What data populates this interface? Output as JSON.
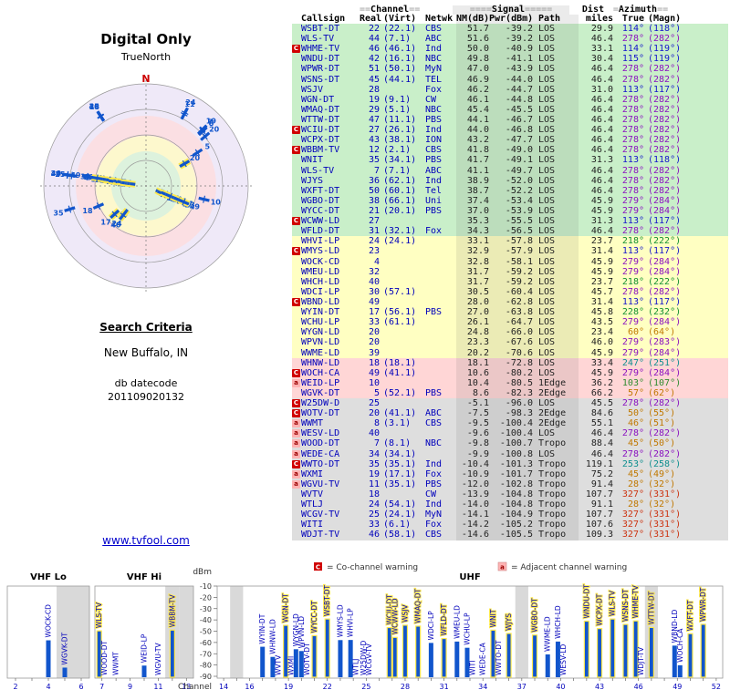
{
  "polar": {
    "title": "Digital Only",
    "subtitle": "TrueNorth",
    "north": "N"
  },
  "criteria": {
    "heading": "Search Criteria",
    "location": "New Buffalo, IN",
    "datecode_label": "db datecode",
    "datecode": "201109020132"
  },
  "site_link": "www.tvfool.com",
  "legend": {
    "c_symbol": "C",
    "c_text": "= Co-channel warning",
    "a_symbol": "a",
    "a_text": "= Adjacent channel warning"
  },
  "table": {
    "header": {
      "callsign": "Callsign",
      "real": "Real",
      "virt": "(Virt)",
      "netwk": "Netwk",
      "nm": "NM(dB)",
      "pwr": "Pwr(dBm)",
      "path": "Path",
      "dist": "Dist",
      "miles": "miles",
      "true": "True",
      "magn": "(Magn)",
      "ch_eq_l": "==",
      "ch": "Channel",
      "ch_eq_r": "==",
      "sig_eq_l": "====",
      "sig": "Signal",
      "sig_eq_r": "=====",
      "az_eq_l": "=",
      "az": "Azimuth",
      "az_eq_r": "=="
    },
    "rows": [
      [
        "",
        "WSBT-DT",
        "22",
        "(22.1)",
        "CBS",
        "51.7",
        "-39.2",
        "LOS",
        "29.9",
        "114°",
        "(118°)"
      ],
      [
        "",
        "WLS-TV",
        "44",
        "(7.1)",
        "ABC",
        "51.6",
        "-39.2",
        "LOS",
        "46.4",
        "278°",
        "(282°)"
      ],
      [
        "C",
        "WHME-TV",
        "46",
        "(46.1)",
        "Ind",
        "50.0",
        "-40.9",
        "LOS",
        "33.1",
        "114°",
        "(119°)"
      ],
      [
        "",
        "WNDU-DT",
        "42",
        "(16.1)",
        "NBC",
        "49.8",
        "-41.1",
        "LOS",
        "30.4",
        "115°",
        "(119°)"
      ],
      [
        "",
        "WPWR-DT",
        "51",
        "(50.1)",
        "MyN",
        "47.0",
        "-43.9",
        "LOS",
        "46.4",
        "278°",
        "(282°)"
      ],
      [
        "",
        "WSNS-DT",
        "45",
        "(44.1)",
        "TEL",
        "46.9",
        "-44.0",
        "LOS",
        "46.4",
        "278°",
        "(282°)"
      ],
      [
        "",
        "WSJV",
        "28",
        "",
        "Fox",
        "46.2",
        "-44.7",
        "LOS",
        "31.0",
        "113°",
        "(117°)"
      ],
      [
        "",
        "WGN-DT",
        "19",
        "(9.1)",
        "CW",
        "46.1",
        "-44.8",
        "LOS",
        "46.4",
        "278°",
        "(282°)"
      ],
      [
        "",
        "WMAQ-DT",
        "29",
        "(5.1)",
        "NBC",
        "45.4",
        "-45.5",
        "LOS",
        "46.4",
        "278°",
        "(282°)"
      ],
      [
        "",
        "WTTW-DT",
        "47",
        "(11.1)",
        "PBS",
        "44.1",
        "-46.7",
        "LOS",
        "46.4",
        "278°",
        "(282°)"
      ],
      [
        "C",
        "WCIU-DT",
        "27",
        "(26.1)",
        "Ind",
        "44.0",
        "-46.8",
        "LOS",
        "46.4",
        "278°",
        "(282°)"
      ],
      [
        "",
        "WCPX-DT",
        "43",
        "(38.1)",
        "ION",
        "43.2",
        "-47.7",
        "LOS",
        "46.4",
        "278°",
        "(282°)"
      ],
      [
        "C",
        "WBBM-TV",
        "12",
        "(2.1)",
        "CBS",
        "41.8",
        "-49.0",
        "LOS",
        "46.4",
        "278°",
        "(282°)"
      ],
      [
        "",
        "WNIT",
        "35",
        "(34.1)",
        "PBS",
        "41.7",
        "-49.1",
        "LOS",
        "31.3",
        "113°",
        "(118°)"
      ],
      [
        "",
        "WLS-TV",
        "7",
        "(7.1)",
        "ABC",
        "41.1",
        "-49.7",
        "LOS",
        "46.4",
        "278°",
        "(282°)"
      ],
      [
        "",
        "WJYS",
        "36",
        "(62.1)",
        "Ind",
        "38.9",
        "-52.0",
        "LOS",
        "46.4",
        "278°",
        "(282°)"
      ],
      [
        "",
        "WXFT-DT",
        "50",
        "(60.1)",
        "Tel",
        "38.7",
        "-52.2",
        "LOS",
        "46.4",
        "278°",
        "(282°)"
      ],
      [
        "",
        "WGBO-DT",
        "38",
        "(66.1)",
        "Uni",
        "37.4",
        "-53.4",
        "LOS",
        "45.9",
        "279°",
        "(284°)"
      ],
      [
        "",
        "WYCC-DT",
        "21",
        "(20.1)",
        "PBS",
        "37.0",
        "-53.9",
        "LOS",
        "45.9",
        "279°",
        "(284°)"
      ],
      [
        "C",
        "WCWW-LD",
        "27",
        "",
        "",
        "35.3",
        "-55.5",
        "LOS",
        "31.3",
        "113°",
        "(117°)"
      ],
      [
        "",
        "WFLD-DT",
        "31",
        "(32.1)",
        "Fox",
        "34.3",
        "-56.5",
        "LOS",
        "46.4",
        "278°",
        "(282°)"
      ],
      [
        "",
        "WHVI-LP",
        "24",
        "(24.1)",
        "",
        "33.1",
        "-57.8",
        "LOS",
        "23.7",
        "218°",
        "(222°)"
      ],
      [
        "C",
        "WMYS-LD",
        "23",
        "",
        "",
        "32.9",
        "-57.9",
        "LOS",
        "31.4",
        "113°",
        "(117°)"
      ],
      [
        "",
        "WOCK-CD",
        "4",
        "",
        "",
        "32.8",
        "-58.1",
        "LOS",
        "45.9",
        "279°",
        "(284°)"
      ],
      [
        "",
        "WMEU-LD",
        "32",
        "",
        "",
        "31.7",
        "-59.2",
        "LOS",
        "45.9",
        "279°",
        "(284°)"
      ],
      [
        "",
        "WHCH-LD",
        "40",
        "",
        "",
        "31.7",
        "-59.2",
        "LOS",
        "23.7",
        "218°",
        "(222°)"
      ],
      [
        "",
        "WDCI-LP",
        "30",
        "(57.1)",
        "",
        "30.5",
        "-60.4",
        "LOS",
        "45.7",
        "278°",
        "(282°)"
      ],
      [
        "C",
        "WBND-LD",
        "49",
        "",
        "",
        "28.0",
        "-62.8",
        "LOS",
        "31.4",
        "113°",
        "(117°)"
      ],
      [
        "",
        "WYIN-DT",
        "17",
        "(56.1)",
        "PBS",
        "27.0",
        "-63.8",
        "LOS",
        "45.8",
        "228°",
        "(232°)"
      ],
      [
        "",
        "WCHU-LP",
        "33",
        "(61.1)",
        "",
        "26.1",
        "-64.7",
        "LOS",
        "43.5",
        "279°",
        "(284°)"
      ],
      [
        "",
        "WYGN-LD",
        "20",
        "",
        "",
        "24.8",
        "-66.0",
        "LOS",
        "23.4",
        "60°",
        "(64°)"
      ],
      [
        "",
        "WPVN-LD",
        "20",
        "",
        "",
        "23.3",
        "-67.6",
        "LOS",
        "46.0",
        "279°",
        "(283°)"
      ],
      [
        "",
        "WWME-LD",
        "39",
        "",
        "",
        "20.2",
        "-70.6",
        "LOS",
        "45.9",
        "279°",
        "(284°)"
      ],
      [
        "",
        "WHNW-LD",
        "18",
        "(18.1)",
        "",
        "18.1",
        "-72.8",
        "LOS",
        "33.4",
        "247°",
        "(251°)"
      ],
      [
        "C",
        "WOCH-CA",
        "49",
        "(41.1)",
        "",
        "10.6",
        "-80.2",
        "LOS",
        "45.9",
        "279°",
        "(284°)"
      ],
      [
        "a",
        "WEID-LP",
        "10",
        "",
        "",
        "10.4",
        "-80.5",
        "1Edge",
        "36.2",
        "103°",
        "(107°)"
      ],
      [
        "",
        "WGVK-DT",
        "5",
        "(52.1)",
        "PBS",
        "8.6",
        "-82.3",
        "2Edge",
        "66.2",
        "57°",
        "(62°)"
      ],
      [
        "C",
        "W25DW-D",
        "25",
        "",
        "",
        "-5.1",
        "-96.0",
        "LOS",
        "45.5",
        "278°",
        "(282°)"
      ],
      [
        "C",
        "WOTV-DT",
        "20",
        "(41.1)",
        "ABC",
        "-7.5",
        "-98.3",
        "2Edge",
        "84.6",
        "50°",
        "(55°)"
      ],
      [
        "a",
        "WWMT",
        "8",
        "(3.1)",
        "CBS",
        "-9.5",
        "-100.4",
        "2Edge",
        "55.1",
        "46°",
        "(51°)"
      ],
      [
        "a",
        "WESV-LD",
        "40",
        "",
        "",
        "-9.6",
        "-100.4",
        "LOS",
        "46.4",
        "278°",
        "(282°)"
      ],
      [
        "a",
        "WOOD-DT",
        "7",
        "(8.1)",
        "NBC",
        "-9.8",
        "-100.7",
        "Tropo",
        "88.4",
        "45°",
        "(50°)"
      ],
      [
        "a",
        "WEDE-CA",
        "34",
        "(34.1)",
        "",
        "-9.9",
        "-100.8",
        "LOS",
        "46.4",
        "278°",
        "(282°)"
      ],
      [
        "C",
        "WWTO-DT",
        "35",
        "(35.1)",
        "Ind",
        "-10.4",
        "-101.3",
        "Tropo",
        "119.1",
        "253°",
        "(258°)"
      ],
      [
        "a",
        "WXMI",
        "19",
        "(17.1)",
        "Fox",
        "-10.9",
        "-101.7",
        "Tropo",
        "75.2",
        "45°",
        "(49°)"
      ],
      [
        "a",
        "WGVU-TV",
        "11",
        "(35.1)",
        "PBS",
        "-12.0",
        "-102.8",
        "Tropo",
        "91.4",
        "28°",
        "(32°)"
      ],
      [
        "",
        "WVTV",
        "18",
        "",
        "CW",
        "-13.9",
        "-104.8",
        "Tropo",
        "107.7",
        "327°",
        "(331°)"
      ],
      [
        "",
        "WTLJ",
        "24",
        "(54.1)",
        "Ind",
        "-14.0",
        "-104.8",
        "Tropo",
        "91.1",
        "28°",
        "(32°)"
      ],
      [
        "",
        "WCGV-TV",
        "25",
        "(24.1)",
        "MyN",
        "-14.1",
        "-104.9",
        "Tropo",
        "107.7",
        "327°",
        "(331°)"
      ],
      [
        "",
        "WITI",
        "33",
        "(6.1)",
        "Fox",
        "-14.2",
        "-105.2",
        "Tropo",
        "107.6",
        "327°",
        "(331°)"
      ],
      [
        "",
        "WDJT-TV",
        "46",
        "(58.1)",
        "CBS",
        "-14.6",
        "-105.5",
        "Tropo",
        "109.3",
        "327°",
        "(331°)"
      ]
    ]
  },
  "tier_thresholds": [
    {
      "min": 34,
      "tier": "green"
    },
    {
      "min": 19.5,
      "tier": "yellow"
    },
    {
      "min": 0,
      "tier": "pink"
    },
    {
      "min": -999,
      "tier": "gray"
    }
  ],
  "az_palette": [
    {
      "max": 15,
      "color": "#cc3310"
    },
    {
      "max": 95,
      "color": "#c07800"
    },
    {
      "max": 110,
      "color": "#2e8b2e"
    },
    {
      "max": 180,
      "color": "#1515cc"
    },
    {
      "max": 240,
      "color": "#109030"
    },
    {
      "max": 265,
      "color": "#0d8f8f"
    },
    {
      "max": 300,
      "color": "#8a10c0"
    },
    {
      "max": 360,
      "color": "#cc3310"
    }
  ],
  "colors": {
    "tier_green": "#c9efc9",
    "tier_yellow": "#ffffc2",
    "tier_pink": "#ffd6d6",
    "tier_gray": "#dedede",
    "accent": "#0000bb",
    "signal_text": "#222222",
    "warn_c": "#d00000",
    "warn_a": "#ffb3b3",
    "warn_a_text": "#990000",
    "bar": "#1155cc",
    "bar_highlight": "#ffe94d",
    "link": "#0000cc",
    "north": "#cc0000"
  },
  "spectrum": {
    "dbm_label": "dBm",
    "dbm_ticks": [
      -10,
      -20,
      -30,
      -40,
      -50,
      -60,
      -70,
      -80,
      -90
    ],
    "channel_label": "Channel",
    "panels": [
      {
        "name": "VHF Lo",
        "ch_min": 2,
        "ch_max": 6,
        "ticks": [
          2,
          4,
          6
        ],
        "shaded": [
          5,
          6
        ]
      },
      {
        "name": "VHF Hi",
        "ch_min": 7,
        "ch_max": 13,
        "ticks": [
          7,
          9,
          11,
          13
        ],
        "shaded": [
          12,
          13
        ]
      },
      {
        "name": "UHF",
        "ch_min": 14,
        "ch_max": 52,
        "ticks": [
          14,
          16,
          19,
          22,
          25,
          28,
          31,
          34,
          37,
          40,
          43,
          46,
          49,
          52
        ],
        "shaded": [
          15,
          37,
          47
        ]
      }
    ]
  }
}
